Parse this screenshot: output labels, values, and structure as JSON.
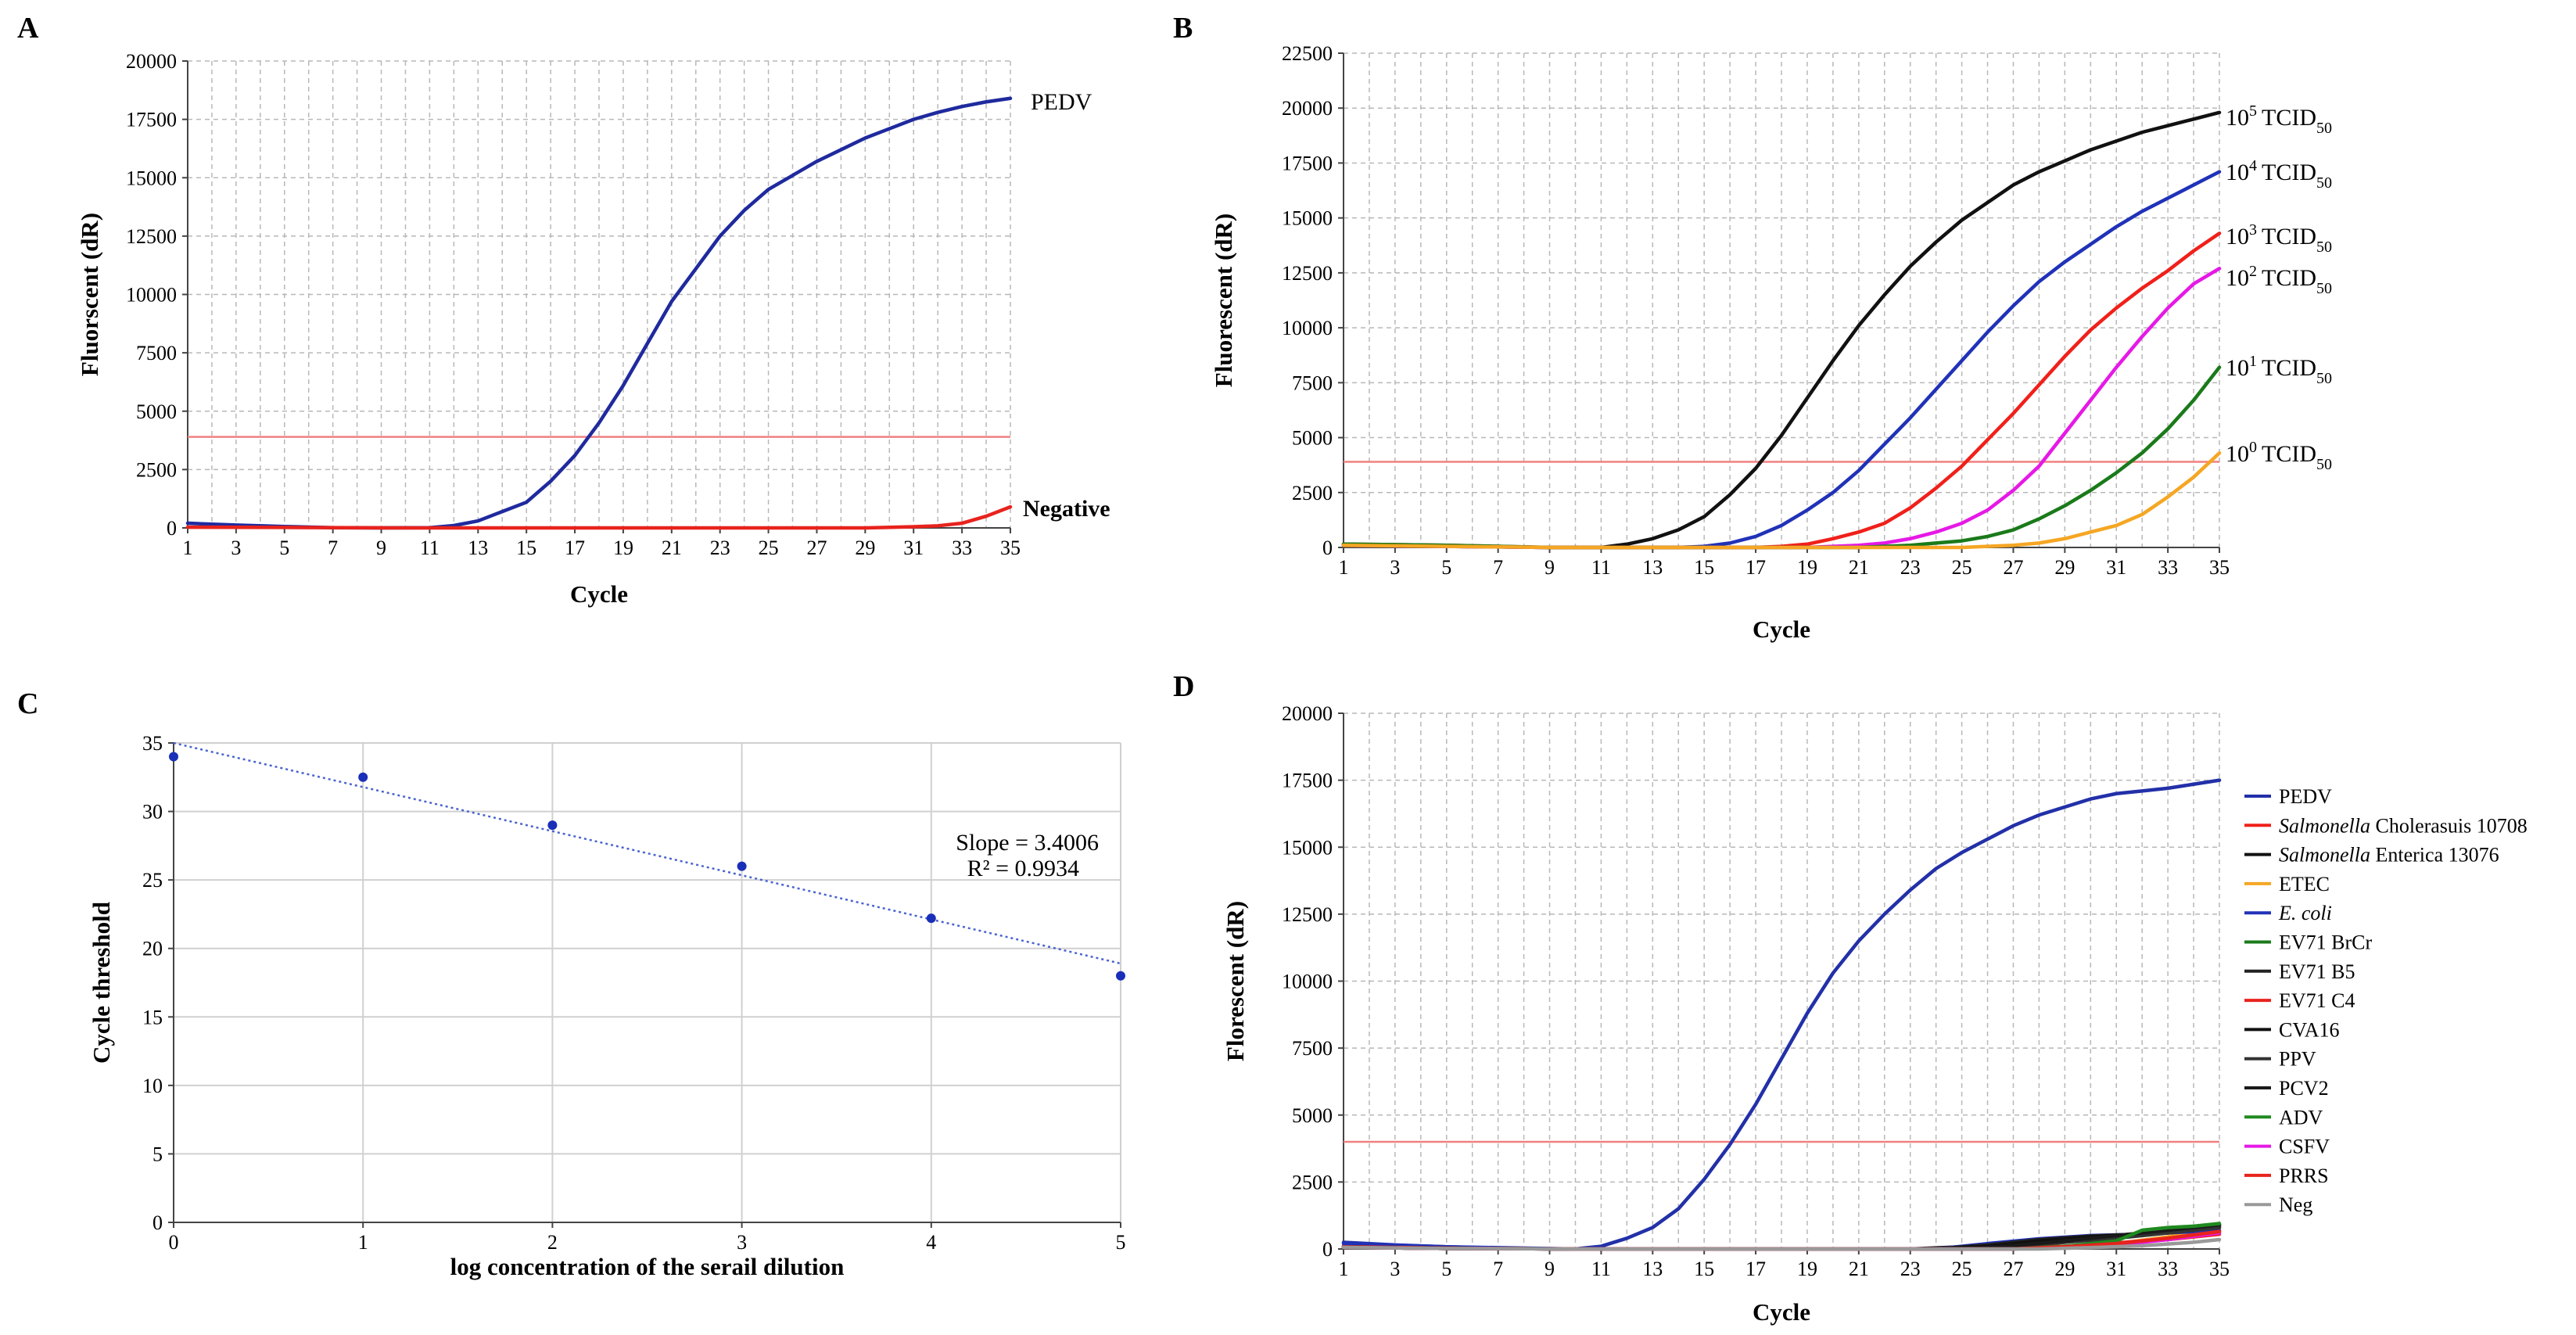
{
  "chart_data": [
    {
      "panel": "A",
      "type": "line",
      "xlabel": "Cycle",
      "ylabel": "Fluorscent (dR)",
      "xlim": [
        1,
        35
      ],
      "ylim": [
        0,
        20000
      ],
      "xticks": [
        1,
        3,
        5,
        7,
        9,
        11,
        13,
        15,
        17,
        19,
        21,
        23,
        25,
        27,
        29,
        31,
        33,
        35
      ],
      "yticks": [
        0,
        2500,
        5000,
        7500,
        10000,
        12500,
        15000,
        17500,
        20000
      ],
      "threshold": 3900,
      "threshold_color": "#f08080",
      "grid": "dashed",
      "series": [
        {
          "name": "PEDV",
          "color": "#1f2a9e",
          "x": [
            1,
            3,
            5,
            7,
            9,
            11,
            12,
            13,
            14,
            15,
            16,
            17,
            18,
            19,
            20,
            21,
            22,
            23,
            24,
            25,
            26,
            27,
            28,
            29,
            30,
            31,
            32,
            33,
            34,
            35
          ],
          "y": [
            200,
            120,
            60,
            10,
            0,
            10,
            100,
            300,
            700,
            1100,
            2000,
            3100,
            4500,
            6100,
            7900,
            9700,
            11100,
            12500,
            13600,
            14500,
            15100,
            15700,
            16200,
            16700,
            17100,
            17500,
            17800,
            18050,
            18250,
            18400
          ]
        },
        {
          "name": "Negative",
          "color": "#e8231d",
          "x": [
            1,
            5,
            10,
            15,
            20,
            25,
            29,
            31,
            32,
            33,
            34,
            35
          ],
          "y": [
            30,
            20,
            0,
            0,
            0,
            0,
            0,
            50,
            90,
            200,
            500,
            900
          ]
        }
      ]
    },
    {
      "panel": "B",
      "type": "line",
      "xlabel": "Cycle",
      "ylabel": "Fluorescent (dR)",
      "xlim": [
        1,
        35
      ],
      "ylim": [
        0,
        22500
      ],
      "xticks": [
        1,
        3,
        5,
        7,
        9,
        11,
        13,
        15,
        17,
        19,
        21,
        23,
        25,
        27,
        29,
        31,
        33,
        35
      ],
      "yticks": [
        0,
        2500,
        5000,
        7500,
        10000,
        12500,
        15000,
        17500,
        20000,
        22500
      ],
      "threshold": 3900,
      "threshold_color": "#f08080",
      "grid": "dashed",
      "series": [
        {
          "name_base": "10",
          "name_exp": "5",
          "name_unit": "TCID",
          "name_sub": "50",
          "color": "#111111",
          "x": [
            1,
            5,
            9,
            11,
            12,
            13,
            14,
            15,
            16,
            17,
            18,
            19,
            20,
            21,
            22,
            23,
            24,
            25,
            26,
            27,
            28,
            29,
            30,
            31,
            32,
            33,
            34,
            35
          ],
          "y": [
            100,
            50,
            0,
            0,
            150,
            400,
            800,
            1400,
            2400,
            3600,
            5100,
            6800,
            8500,
            10100,
            11500,
            12800,
            13900,
            14900,
            15700,
            16500,
            17100,
            17600,
            18100,
            18500,
            18900,
            19200,
            19500,
            19800
          ]
        },
        {
          "name_base": "10",
          "name_exp": "4",
          "name_unit": "TCID",
          "name_sub": "50",
          "color": "#2032b8",
          "x": [
            1,
            5,
            9,
            14,
            15,
            16,
            17,
            18,
            19,
            20,
            21,
            22,
            23,
            24,
            25,
            26,
            27,
            28,
            29,
            30,
            31,
            32,
            33,
            34,
            35
          ],
          "y": [
            100,
            50,
            0,
            0,
            50,
            200,
            500,
            1000,
            1700,
            2500,
            3500,
            4700,
            5900,
            7200,
            8500,
            9800,
            11000,
            12100,
            13000,
            13800,
            14600,
            15300,
            15900,
            16500,
            17100
          ]
        },
        {
          "name_base": "10",
          "name_exp": "3",
          "name_unit": "TCID",
          "name_sub": "50",
          "color": "#f0201a",
          "x": [
            1,
            5,
            9,
            17,
            18,
            19,
            20,
            21,
            22,
            23,
            24,
            25,
            26,
            27,
            28,
            29,
            30,
            31,
            32,
            33,
            34,
            35
          ],
          "y": [
            150,
            100,
            0,
            0,
            50,
            150,
            400,
            700,
            1100,
            1800,
            2700,
            3700,
            4900,
            6100,
            7400,
            8700,
            9900,
            10900,
            11800,
            12600,
            13500,
            14300
          ]
        },
        {
          "name_base": "10",
          "name_exp": "2",
          "name_unit": "TCID",
          "name_sub": "50",
          "color": "#e619e6",
          "x": [
            1,
            5,
            9,
            19,
            20,
            21,
            22,
            23,
            24,
            25,
            26,
            27,
            28,
            29,
            30,
            31,
            32,
            33,
            34,
            35
          ],
          "y": [
            100,
            50,
            0,
            0,
            50,
            100,
            200,
            400,
            700,
            1100,
            1700,
            2600,
            3700,
            5200,
            6700,
            8200,
            9600,
            10900,
            12000,
            12700
          ]
        },
        {
          "name_base": "10",
          "name_exp": "1",
          "name_unit": "TCID",
          "name_sub": "50",
          "color": "#1a7a1a",
          "x": [
            1,
            5,
            9,
            21,
            22,
            23,
            24,
            25,
            26,
            27,
            28,
            29,
            30,
            31,
            32,
            33,
            34,
            35
          ],
          "y": [
            150,
            100,
            0,
            0,
            50,
            100,
            200,
            300,
            500,
            800,
            1300,
            1900,
            2600,
            3400,
            4300,
            5400,
            6700,
            8200
          ]
        },
        {
          "name_base": "10",
          "name_exp": "0",
          "name_unit": "TCID",
          "name_sub": "50",
          "color": "#f5a623",
          "x": [
            1,
            5,
            9,
            25,
            26,
            27,
            28,
            29,
            30,
            31,
            32,
            33,
            34,
            35
          ],
          "y": [
            100,
            50,
            0,
            0,
            50,
            100,
            200,
            400,
            700,
            1000,
            1500,
            2300,
            3200,
            4300
          ]
        }
      ]
    },
    {
      "panel": "C",
      "type": "scatter",
      "xlabel": "log concentration of the serail dilution",
      "ylabel": "Cycle threshold",
      "xlim": [
        0,
        5
      ],
      "ylim": [
        0,
        35
      ],
      "xticks": [
        0,
        1,
        2,
        3,
        4,
        5
      ],
      "yticks": [
        0,
        5,
        10,
        15,
        20,
        25,
        30,
        35
      ],
      "grid": "solid",
      "points": {
        "x": [
          0,
          1,
          2,
          3,
          4,
          5
        ],
        "y": [
          34,
          32.5,
          29,
          26,
          22.2,
          18
        ],
        "color": "#1a2fb8"
      },
      "trendline": {
        "x": [
          0,
          5
        ],
        "y": [
          35.0,
          18.9
        ],
        "color": "#4a64d0",
        "style": "dotted"
      },
      "annotation_line1": "Slope = 3.4006",
      "annotation_line2": "R² = 0.9934"
    },
    {
      "panel": "D",
      "type": "line",
      "xlabel": "Cycle",
      "ylabel": "Florescent (dR)",
      "xlim": [
        1,
        35
      ],
      "ylim": [
        0,
        20000
      ],
      "xticks": [
        1,
        3,
        5,
        7,
        9,
        11,
        13,
        15,
        17,
        19,
        21,
        23,
        25,
        27,
        29,
        31,
        33,
        35
      ],
      "yticks": [
        0,
        2500,
        5000,
        7500,
        10000,
        12500,
        15000,
        17500,
        20000
      ],
      "threshold": 4000,
      "threshold_color": "#f08080",
      "grid": "dashed",
      "legend_position": "right",
      "series": [
        {
          "name": "PEDV",
          "italic": "",
          "color": "#2230a8",
          "x": [
            1,
            3,
            5,
            7,
            9,
            10,
            11,
            12,
            13,
            14,
            15,
            16,
            17,
            18,
            19,
            20,
            21,
            22,
            23,
            24,
            25,
            26,
            27,
            28,
            29,
            30,
            31,
            32,
            33,
            34,
            35
          ],
          "y": [
            250,
            150,
            80,
            30,
            0,
            0,
            100,
            400,
            800,
            1500,
            2600,
            3900,
            5400,
            7100,
            8800,
            10300,
            11500,
            12500,
            13400,
            14200,
            14800,
            15300,
            15800,
            16200,
            16500,
            16800,
            17000,
            17100,
            17200,
            17350,
            17500
          ]
        },
        {
          "name": "Cholerasuis 10708",
          "italic": "Salmonella",
          "color": "#f0201a",
          "x": [
            1,
            5,
            10,
            20,
            25,
            27,
            29,
            31,
            33,
            35
          ],
          "y": [
            100,
            50,
            0,
            0,
            0,
            50,
            100,
            200,
            350,
            550
          ]
        },
        {
          "name": "Enterica 13076",
          "italic": "Salmonella",
          "color": "#111111",
          "x": [
            1,
            5,
            10,
            23,
            25,
            27,
            29,
            31,
            33,
            35
          ],
          "y": [
            100,
            50,
            0,
            0,
            80,
            250,
            380,
            480,
            600,
            800
          ]
        },
        {
          "name": "ETEC",
          "italic": "",
          "color": "#f5a623",
          "x": [
            1,
            5,
            10,
            25,
            27,
            29,
            31,
            33,
            35
          ],
          "y": [
            100,
            50,
            0,
            0,
            20,
            80,
            200,
            450,
            800
          ]
        },
        {
          "name": "",
          "italic": "E. coli",
          "color": "#2032b8",
          "x": [
            1,
            5,
            10,
            24,
            26,
            28,
            30,
            32,
            34,
            35
          ],
          "y": [
            200,
            80,
            0,
            0,
            200,
            380,
            500,
            550,
            650,
            700
          ]
        },
        {
          "name": "EV71 BrCr",
          "italic": "",
          "color": "#1a7a1a",
          "x": [
            1,
            5,
            10,
            25,
            27,
            29,
            31,
            33,
            35
          ],
          "y": [
            80,
            30,
            0,
            0,
            80,
            250,
            450,
            700,
            900
          ]
        },
        {
          "name": "EV71 B5",
          "italic": "",
          "color": "#222222",
          "x": [
            1,
            5,
            10,
            24,
            26,
            28,
            30,
            32,
            34,
            35
          ],
          "y": [
            80,
            30,
            0,
            0,
            150,
            350,
            480,
            560,
            700,
            850
          ]
        },
        {
          "name": "EV71 C4",
          "italic": "",
          "color": "#e8231d",
          "x": [
            1,
            5,
            10,
            26,
            28,
            30,
            32,
            34,
            35
          ],
          "y": [
            80,
            30,
            0,
            0,
            60,
            150,
            300,
            500,
            650
          ]
        },
        {
          "name": "CVA16",
          "italic": "",
          "color": "#111111",
          "x": [
            1,
            5,
            10,
            24,
            26,
            28,
            30,
            32,
            34,
            35
          ],
          "y": [
            60,
            20,
            0,
            0,
            100,
            300,
            450,
            550,
            700,
            900
          ]
        },
        {
          "name": "PPV",
          "italic": "",
          "color": "#333333",
          "x": [
            1,
            5,
            10,
            25,
            27,
            29,
            31,
            33,
            35
          ],
          "y": [
            60,
            20,
            0,
            0,
            100,
            250,
            400,
            600,
            800
          ]
        },
        {
          "name": "PCV2",
          "italic": "",
          "color": "#1a1a1a",
          "x": [
            1,
            5,
            10,
            25,
            27,
            29,
            31,
            33,
            35
          ],
          "y": [
            60,
            20,
            0,
            0,
            120,
            300,
            500,
            700,
            900
          ]
        },
        {
          "name": "ADV",
          "italic": "",
          "color": "#1f8a1f",
          "x": [
            1,
            5,
            10,
            27,
            29,
            31,
            32,
            33,
            34,
            35
          ],
          "y": [
            60,
            20,
            0,
            0,
            100,
            300,
            700,
            800,
            850,
            950
          ]
        },
        {
          "name": "CSFV",
          "italic": "",
          "color": "#e619e6",
          "x": [
            1,
            5,
            10,
            27,
            29,
            31,
            33,
            35
          ],
          "y": [
            60,
            20,
            0,
            0,
            60,
            150,
            350,
            600
          ]
        },
        {
          "name": "PRRS",
          "italic": "",
          "color": "#e8231d",
          "x": [
            1,
            5,
            10,
            27,
            29,
            31,
            33,
            35
          ],
          "y": [
            60,
            20,
            0,
            0,
            80,
            200,
            400,
            650
          ]
        },
        {
          "name": "Neg",
          "italic": "",
          "color": "#999999",
          "x": [
            1,
            5,
            10,
            28,
            30,
            32,
            34,
            35
          ],
          "y": [
            60,
            20,
            0,
            0,
            50,
            120,
            250,
            350
          ]
        }
      ]
    }
  ]
}
